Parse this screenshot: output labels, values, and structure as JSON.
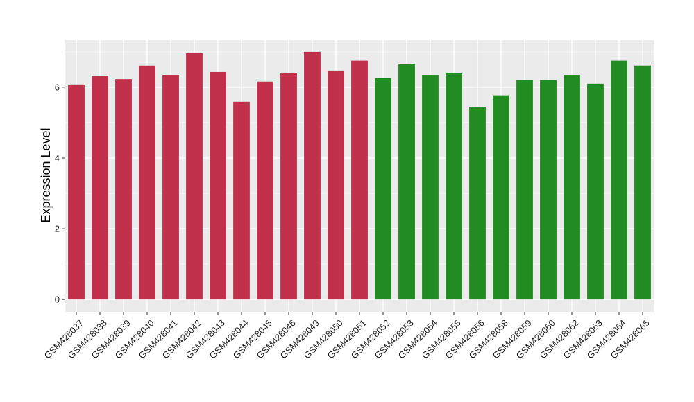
{
  "chart_data": {
    "type": "bar",
    "ylabel": "Expression Level",
    "xlabel": "",
    "ylim": [
      -0.35,
      7.35
    ],
    "yticks": [
      0,
      2,
      4,
      6
    ],
    "ytick_labels": [
      "0",
      "2",
      "4",
      "6"
    ],
    "grid": true,
    "legend": "none",
    "colors": {
      "group_a": "#C0304A",
      "group_b": "#228B22",
      "panel_bg": "#EBEBEB",
      "grid": "#FFFFFF"
    },
    "categories": [
      "GSM428037",
      "GSM428038",
      "GSM428039",
      "GSM428040",
      "GSM428041",
      "GSM428042",
      "GSM428043",
      "GSM428044",
      "GSM428045",
      "GSM428046",
      "GSM428049",
      "GSM428050",
      "GSM428051",
      "GSM428052",
      "GSM428053",
      "GSM428054",
      "GSM428055",
      "GSM428056",
      "GSM428058",
      "GSM428059",
      "GSM428060",
      "GSM428062",
      "GSM428063",
      "GSM428064",
      "GSM428065"
    ],
    "values": [
      6.08,
      6.33,
      6.23,
      6.61,
      6.35,
      6.96,
      6.43,
      5.59,
      6.16,
      6.41,
      7.0,
      6.47,
      6.75,
      6.26,
      6.66,
      6.35,
      6.39,
      5.45,
      5.77,
      6.2,
      6.2,
      6.35,
      6.1,
      6.75,
      6.61
    ],
    "groups": [
      "a",
      "a",
      "a",
      "a",
      "a",
      "a",
      "a",
      "a",
      "a",
      "a",
      "a",
      "a",
      "a",
      "b",
      "b",
      "b",
      "b",
      "b",
      "b",
      "b",
      "b",
      "b",
      "b",
      "b",
      "b"
    ]
  }
}
